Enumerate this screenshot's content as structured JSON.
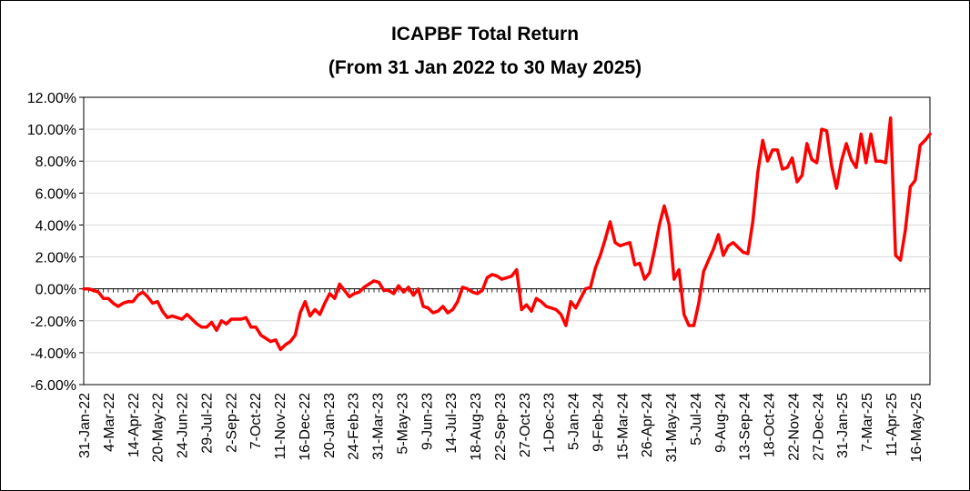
{
  "chart_data": {
    "type": "line",
    "title": "ICAPBF Total Return",
    "subtitle": "(From 31 Jan 2022 to 30 May 2025)",
    "xlabel": "",
    "ylabel": "",
    "ylim": [
      -6,
      12
    ],
    "y_tick_values": [
      12,
      10,
      8,
      6,
      4,
      2,
      0,
      -2,
      -4,
      -6
    ],
    "y_tick_labels": [
      "12.00%",
      "10.00%",
      "8.00%",
      "6.00%",
      "4.00%",
      "2.00%",
      "0.00%",
      "-2.00%",
      "-4.00%",
      "-6.00%"
    ],
    "x_tick_labels": [
      "31-Jan-22",
      "4-Mar-22",
      "14-Apr-22",
      "20-May-22",
      "24-Jun-22",
      "29-Jul-22",
      "2-Sep-22",
      "7-Oct-22",
      "11-Nov-22",
      "16-Dec-22",
      "20-Jan-23",
      "24-Feb-23",
      "31-Mar-23",
      "5-May-23",
      "9-Jun-23",
      "14-Jul-23",
      "18-Aug-23",
      "22-Sep-23",
      "27-Oct-23",
      "1-Dec-23",
      "5-Jan-24",
      "9-Feb-24",
      "15-Mar-24",
      "26-Apr-24",
      "31-May-24",
      "5-Jul-24",
      "9-Aug-24",
      "13-Sep-24",
      "18-Oct-24",
      "22-Nov-24",
      "27-Dec-24",
      "31-Jan-25",
      "7-Mar-25",
      "11-Apr-25",
      "16-May-25"
    ],
    "grid": true,
    "series": [
      {
        "color": "#ff0000",
        "values": [
          0.0,
          0.0,
          -0.1,
          -0.2,
          -0.6,
          -0.6,
          -0.9,
          -1.1,
          -0.9,
          -0.8,
          -0.8,
          -0.4,
          -0.2,
          -0.5,
          -0.9,
          -0.8,
          -1.4,
          -1.8,
          -1.7,
          -1.8,
          -1.9,
          -1.6,
          -1.9,
          -2.2,
          -2.4,
          -2.4,
          -2.1,
          -2.6,
          -2.0,
          -2.2,
          -1.9,
          -1.9,
          -1.9,
          -1.8,
          -2.4,
          -2.4,
          -2.9,
          -3.1,
          -3.3,
          -3.2,
          -3.8,
          -3.5,
          -3.3,
          -2.9,
          -1.5,
          -0.8,
          -1.7,
          -1.3,
          -1.6,
          -0.9,
          -0.3,
          -0.6,
          0.3,
          -0.1,
          -0.5,
          -0.3,
          -0.2,
          0.1,
          0.3,
          0.5,
          0.4,
          -0.1,
          -0.1,
          -0.3,
          0.2,
          -0.2,
          0.1,
          -0.4,
          0.0,
          -1.1,
          -1.2,
          -1.5,
          -1.4,
          -1.1,
          -1.5,
          -1.3,
          -0.8,
          0.1,
          0.0,
          -0.2,
          -0.3,
          -0.1,
          0.7,
          0.9,
          0.8,
          0.6,
          0.7,
          0.8,
          1.2,
          -1.3,
          -1.0,
          -1.4,
          -0.6,
          -0.8,
          -1.1,
          -1.2,
          -1.3,
          -1.6,
          -2.3,
          -0.8,
          -1.2,
          -0.6,
          0.0,
          0.1,
          1.3,
          2.1,
          3.1,
          4.2,
          2.9,
          2.7,
          2.8,
          2.9,
          1.5,
          1.6,
          0.6,
          1.0,
          2.4,
          4.0,
          5.2,
          4.0,
          0.6,
          1.2,
          -1.6,
          -2.3,
          -2.3,
          -0.9,
          1.1,
          1.8,
          2.5,
          3.4,
          2.1,
          2.7,
          2.9,
          2.6,
          2.3,
          2.2,
          4.2,
          7.3,
          9.3,
          8.0,
          8.7,
          8.7,
          7.5,
          7.6,
          8.2,
          6.7,
          7.1,
          9.1,
          8.1,
          7.9,
          10.0,
          9.9,
          7.7,
          6.3,
          8.0,
          9.1,
          8.1,
          7.6,
          9.7,
          7.9,
          9.7,
          8.0,
          8.0,
          7.9,
          10.7,
          2.1,
          1.8,
          3.7,
          6.4,
          6.8,
          9.0,
          9.3,
          9.7
        ]
      }
    ]
  }
}
